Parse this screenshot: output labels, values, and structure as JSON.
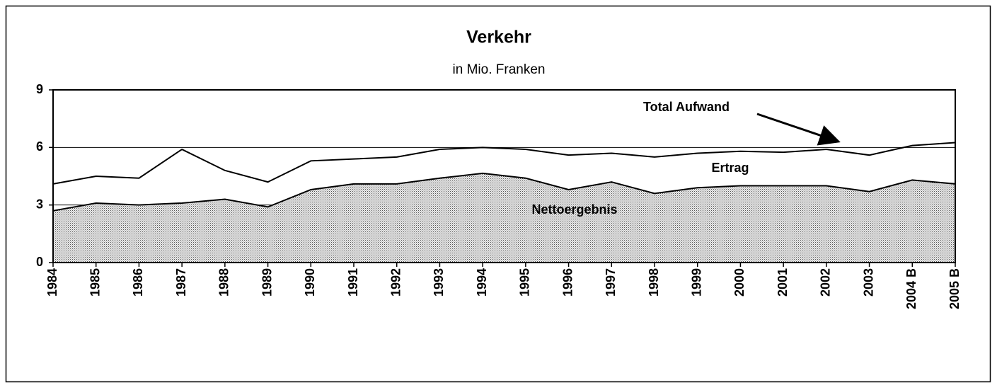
{
  "chart_data": {
    "type": "area-line",
    "title": "Verkehr",
    "subtitle": "in Mio. Franken",
    "categories": [
      "1984",
      "1985",
      "1986",
      "1987",
      "1988",
      "1989",
      "1990",
      "1991",
      "1992",
      "1993",
      "1994",
      "1995",
      "1996",
      "1997",
      "1998",
      "1999",
      "2000",
      "2001",
      "2002",
      "2003",
      "2004 B",
      "2005 B"
    ],
    "series": [
      {
        "name": "Nettoergebnis",
        "color": "#bdbdbd",
        "kind": "area",
        "values": [
          2.7,
          3.1,
          3.0,
          3.1,
          3.3,
          2.9,
          3.8,
          4.1,
          4.1,
          4.4,
          4.65,
          4.4,
          3.8,
          4.2,
          3.6,
          3.9,
          4.0,
          4.0,
          4.0,
          3.7,
          4.3,
          4.1
        ]
      },
      {
        "name": "Total Aufwand",
        "color": "#000000",
        "kind": "line",
        "values": [
          4.1,
          4.5,
          4.4,
          5.9,
          4.8,
          4.2,
          5.3,
          5.4,
          5.5,
          5.9,
          6.0,
          5.9,
          5.6,
          5.7,
          5.5,
          5.7,
          5.8,
          5.75,
          5.9,
          5.6,
          6.1,
          6.25
        ]
      }
    ],
    "annotations": [
      "Ertrag"
    ],
    "ylim": [
      0,
      9
    ],
    "yticks": [
      0,
      3,
      6,
      9
    ],
    "grid": true
  }
}
